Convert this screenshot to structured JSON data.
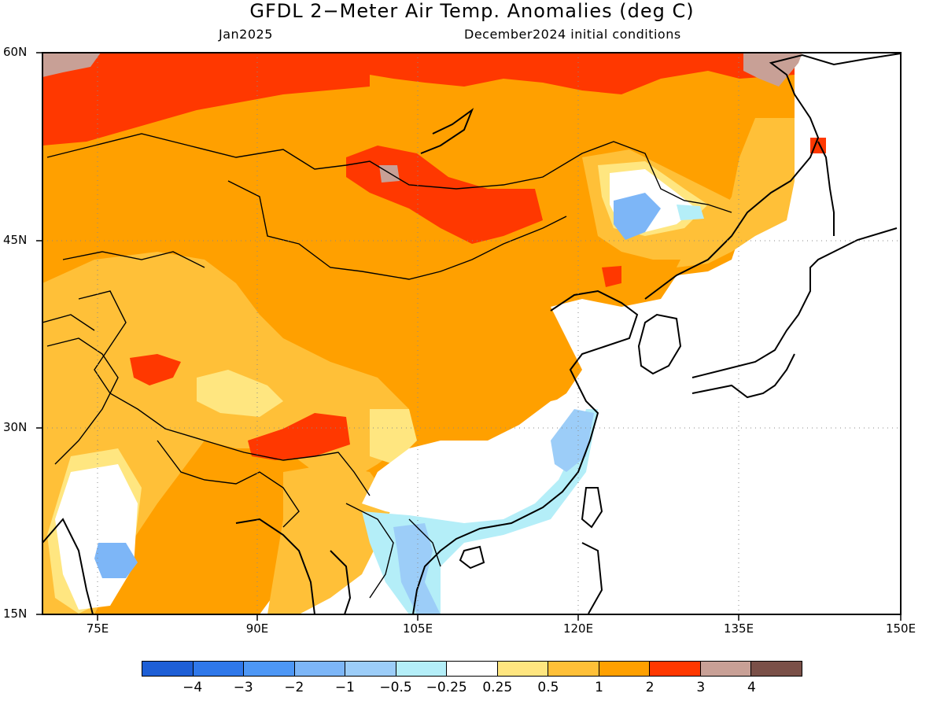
{
  "title": "GFDL 2−Meter Air Temp. Anomalies (deg C)",
  "left_subtitle": "Jan2025",
  "right_subtitle": "December2024 initial conditions",
  "map": {
    "lat_labels": [
      "60N",
      "45N",
      "30N",
      "15N"
    ],
    "lon_labels": [
      "75E",
      "90E",
      "105E",
      "120E",
      "135E",
      "150E"
    ],
    "lat_range": [
      15,
      60
    ],
    "lon_range": [
      66,
      150
    ]
  },
  "colorbar": {
    "labels": [
      "−4",
      "−3",
      "−2",
      "−1",
      "−0.5",
      "−0.25",
      "0.25",
      "0.5",
      "1",
      "2",
      "3",
      "4"
    ],
    "colors": [
      "#1e5fd6",
      "#2f78ea",
      "#4d97f5",
      "#7db6f7",
      "#9ccdf8",
      "#b4eef8",
      "#ffffff",
      "#ffe680",
      "#ffc038",
      "#ffa000",
      "#ff3800",
      "#c8a096",
      "#7a5048"
    ]
  },
  "colors": {
    "grid": "#8a8a8a",
    "coast": "#000000",
    "frame": "#000000"
  }
}
